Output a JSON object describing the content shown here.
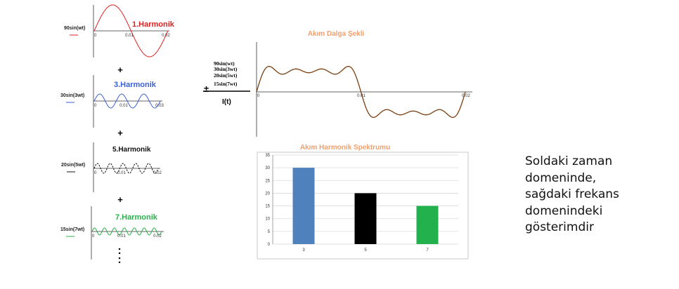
{
  "harmonics": [
    {
      "title": "1.Harmonik",
      "label": "90sin(wt)",
      "color": "#e02020",
      "amplitude": 90,
      "order": 1,
      "ticks": [
        "0",
        "0.01",
        "0.02"
      ]
    },
    {
      "title": "3.Harmonik",
      "label": "30sin(3wt)",
      "color": "#3b5fd9",
      "amplitude": 30,
      "order": 3,
      "ticks": [
        "0",
        "0.01",
        "0.03"
      ]
    },
    {
      "title": "5.Harmonik",
      "label": "20sin(5wt)",
      "color": "#111111",
      "amplitude": 20,
      "order": 5,
      "ticks": [
        "0",
        "0.01",
        "0.02"
      ]
    },
    {
      "title": "7.Harmonik",
      "label": "15sin(7wt)",
      "color": "#2ab04a",
      "amplitude": 15,
      "order": 7,
      "ticks": [
        "0",
        "0.01",
        "0.02"
      ]
    }
  ],
  "plus_sign": "+",
  "dots": ":",
  "sum_sign": "±",
  "sum_terms": [
    "90sin(wt)",
    "30sin(3wt)",
    "20sin(5wt)",
    "15sin(7wt)"
  ],
  "sum_result": "I(t)",
  "waveform": {
    "title": "Akım Dalga Şekli",
    "title_color": "#f0a070",
    "line_color": "#7a3e10",
    "ticks": [
      "0",
      "0.01",
      "0.02"
    ]
  },
  "chart_data": {
    "type": "bar",
    "title": "Akım Harmonik Spektrumu",
    "categories": [
      "3",
      "5",
      "7"
    ],
    "values": [
      30,
      20,
      15
    ],
    "colors": [
      "#4f81bd",
      "#000000",
      "#22b14c"
    ],
    "ylim": [
      0,
      35
    ],
    "yticks": [
      "0",
      "5",
      "10",
      "15",
      "20",
      "25",
      "30",
      "35"
    ],
    "grid": true
  },
  "description_lines": [
    "Soldaki zaman",
    "domeninde,",
    "sağdaki frekans",
    "domenindeki",
    "gösterimdir"
  ]
}
